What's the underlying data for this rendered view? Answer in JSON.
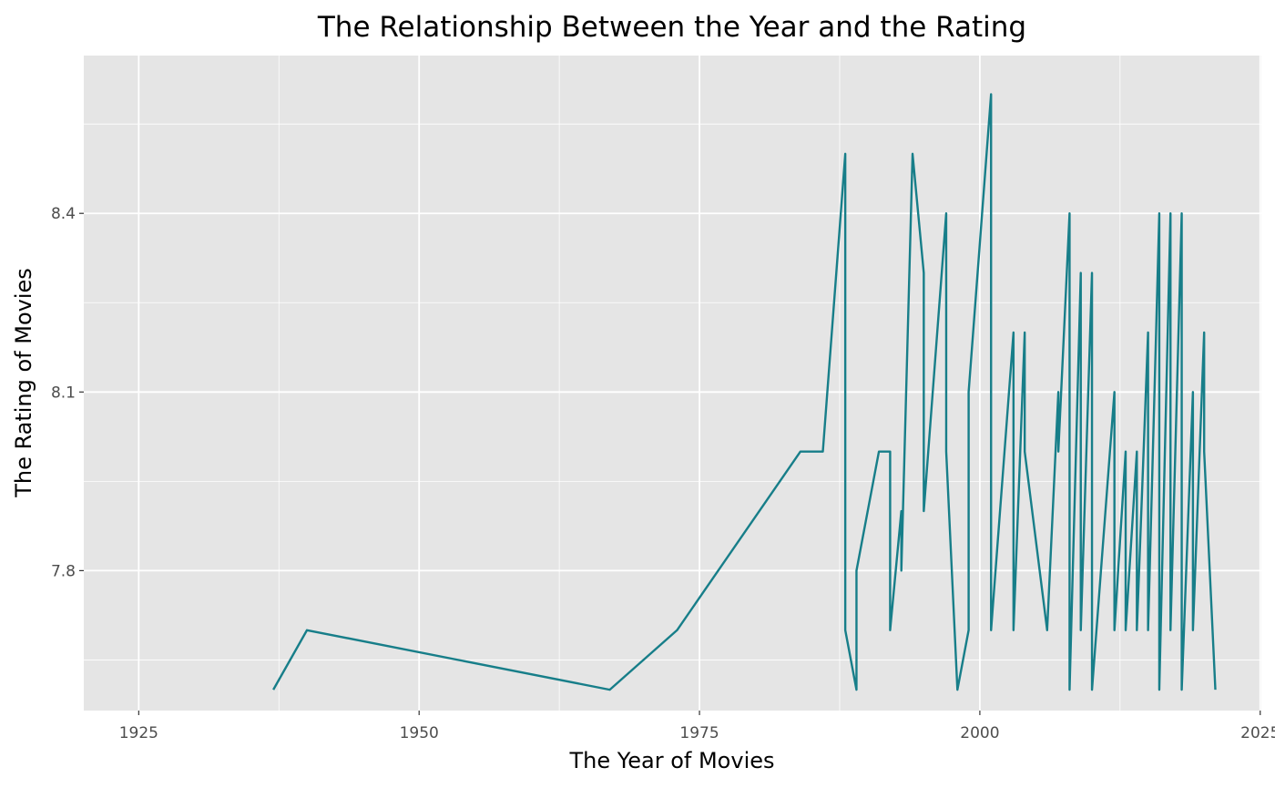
{
  "chart_data": {
    "type": "line",
    "title": "The Relationship Between the Year and the Rating",
    "xlabel": "The Year of Movies",
    "ylabel": "The Rating of Movies",
    "xlim": [
      1920.1,
      2025.1
    ],
    "ylim": [
      7.565,
      8.665
    ],
    "x_ticks": [
      1925,
      1950,
      1975,
      2000,
      2025
    ],
    "x_tick_labels": [
      "1925",
      "1950",
      "1975",
      "2000",
      "2025"
    ],
    "y_ticks": [
      7.8,
      8.1,
      8.4
    ],
    "y_tick_labels": [
      "7.8",
      "8.1",
      "8.4"
    ],
    "grid": true,
    "line_color": "#177E89",
    "panel_background": "#E5E5E5",
    "series": [
      {
        "x": [
          1937,
          1940,
          1967,
          1973,
          1984,
          1986,
          1988,
          1988,
          1989,
          1989,
          1991,
          1992,
          1992,
          1993,
          1993,
          1994,
          1995,
          1995,
          1997,
          1997,
          1998,
          1999,
          1999,
          2001,
          2001,
          2003,
          2003,
          2004,
          2004,
          2006,
          2007,
          2007,
          2008,
          2008,
          2009,
          2009,
          2010,
          2010,
          2012,
          2012,
          2013,
          2013,
          2014,
          2014,
          2015,
          2015,
          2016,
          2016,
          2017,
          2017,
          2018,
          2018,
          2019,
          2019,
          2020,
          2020,
          2021
        ],
        "values": [
          7.6,
          7.7,
          7.6,
          7.7,
          8.0,
          8.0,
          8.5,
          7.7,
          7.6,
          7.8,
          8.0,
          8.0,
          7.7,
          7.9,
          7.8,
          8.5,
          8.3,
          7.9,
          8.4,
          8.0,
          7.6,
          7.7,
          8.1,
          8.6,
          7.7,
          8.2,
          7.7,
          8.2,
          8.0,
          7.7,
          8.1,
          8.0,
          8.4,
          7.6,
          8.3,
          7.7,
          8.3,
          7.6,
          8.1,
          7.7,
          8.0,
          7.7,
          8.0,
          7.7,
          8.2,
          7.7,
          8.4,
          7.6,
          8.4,
          7.7,
          8.4,
          7.6,
          8.1,
          7.7,
          8.2,
          8.0,
          7.6
        ]
      }
    ]
  }
}
